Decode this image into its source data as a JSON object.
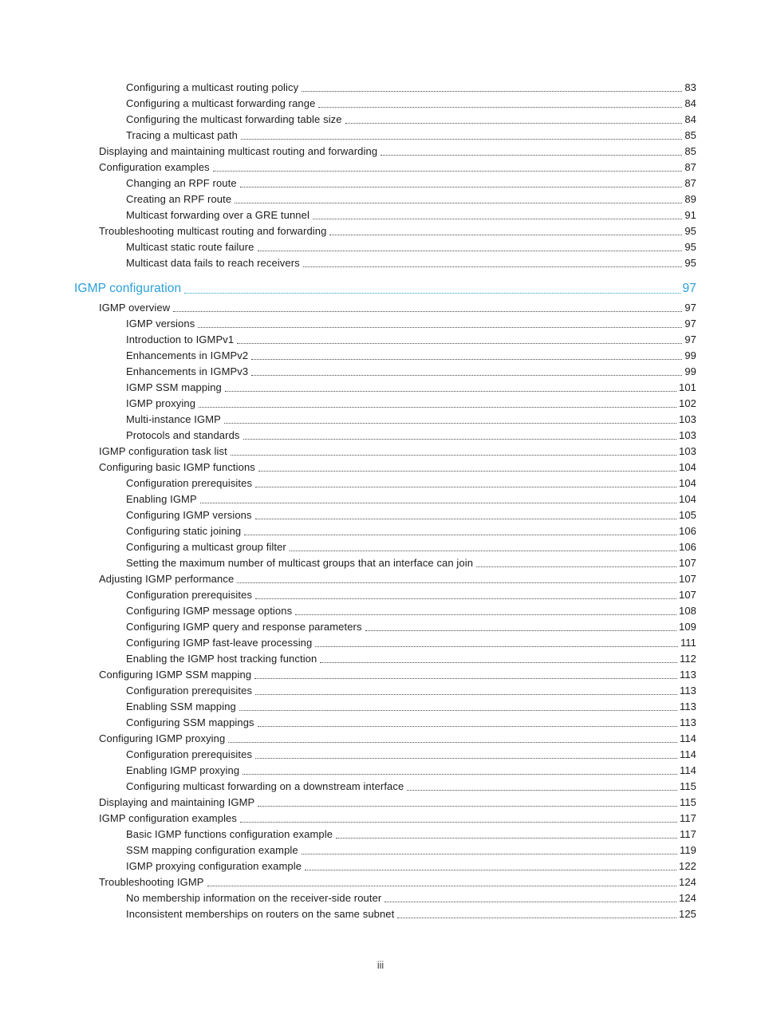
{
  "page": {
    "footer_page_number": "iii",
    "accent_color": "#2aa0da",
    "text_color": "#1c1c1c"
  },
  "toc": {
    "entries": [
      {
        "level": 3,
        "label": "Configuring a multicast routing policy",
        "page": "83"
      },
      {
        "level": 3,
        "label": "Configuring a multicast forwarding range",
        "page": "84"
      },
      {
        "level": 3,
        "label": "Configuring the multicast forwarding table size",
        "page": "84"
      },
      {
        "level": 3,
        "label": "Tracing a multicast path",
        "page": "85"
      },
      {
        "level": 2,
        "label": "Displaying and maintaining multicast routing and forwarding",
        "page": "85"
      },
      {
        "level": 2,
        "label": "Configuration examples",
        "page": "87"
      },
      {
        "level": 3,
        "label": "Changing an RPF route",
        "page": "87"
      },
      {
        "level": 3,
        "label": "Creating an RPF route",
        "page": "89"
      },
      {
        "level": 3,
        "label": "Multicast forwarding over a GRE tunnel",
        "page": "91"
      },
      {
        "level": 2,
        "label": "Troubleshooting multicast routing and forwarding",
        "page": "95"
      },
      {
        "level": 3,
        "label": "Multicast static route failure",
        "page": "95"
      },
      {
        "level": 3,
        "label": "Multicast data fails to reach receivers",
        "page": "95"
      },
      {
        "level": 1,
        "label": "IGMP configuration",
        "page": "97"
      },
      {
        "level": 2,
        "label": "IGMP overview",
        "page": "97"
      },
      {
        "level": 3,
        "label": "IGMP versions",
        "page": "97"
      },
      {
        "level": 3,
        "label": "Introduction to IGMPv1",
        "page": "97"
      },
      {
        "level": 3,
        "label": "Enhancements in IGMPv2",
        "page": "99"
      },
      {
        "level": 3,
        "label": "Enhancements in IGMPv3",
        "page": "99"
      },
      {
        "level": 3,
        "label": "IGMP SSM mapping",
        "page": "101"
      },
      {
        "level": 3,
        "label": "IGMP proxying",
        "page": "102"
      },
      {
        "level": 3,
        "label": "Multi-instance IGMP",
        "page": "103"
      },
      {
        "level": 3,
        "label": "Protocols and standards",
        "page": "103"
      },
      {
        "level": 2,
        "label": "IGMP configuration task list",
        "page": "103"
      },
      {
        "level": 2,
        "label": "Configuring basic IGMP functions",
        "page": "104"
      },
      {
        "level": 3,
        "label": "Configuration prerequisites",
        "page": "104"
      },
      {
        "level": 3,
        "label": "Enabling IGMP",
        "page": "104"
      },
      {
        "level": 3,
        "label": "Configuring IGMP versions",
        "page": "105"
      },
      {
        "level": 3,
        "label": "Configuring static joining",
        "page": "106"
      },
      {
        "level": 3,
        "label": "Configuring a multicast group filter",
        "page": "106"
      },
      {
        "level": 3,
        "label": "Setting the maximum number of multicast groups that an interface can join",
        "page": "107"
      },
      {
        "level": 2,
        "label": "Adjusting IGMP performance",
        "page": "107"
      },
      {
        "level": 3,
        "label": "Configuration prerequisites",
        "page": "107"
      },
      {
        "level": 3,
        "label": "Configuring IGMP message options",
        "page": "108"
      },
      {
        "level": 3,
        "label": "Configuring IGMP query and response parameters",
        "page": "109"
      },
      {
        "level": 3,
        "label": "Configuring IGMP fast-leave processing",
        "page": "111"
      },
      {
        "level": 3,
        "label": "Enabling the IGMP host tracking function",
        "page": "112"
      },
      {
        "level": 2,
        "label": "Configuring IGMP SSM mapping",
        "page": "113"
      },
      {
        "level": 3,
        "label": "Configuration prerequisites",
        "page": "113"
      },
      {
        "level": 3,
        "label": "Enabling SSM mapping",
        "page": "113"
      },
      {
        "level": 3,
        "label": "Configuring SSM mappings",
        "page": "113"
      },
      {
        "level": 2,
        "label": "Configuring IGMP proxying",
        "page": "114"
      },
      {
        "level": 3,
        "label": "Configuration prerequisites",
        "page": "114"
      },
      {
        "level": 3,
        "label": "Enabling IGMP proxying",
        "page": "114"
      },
      {
        "level": 3,
        "label": "Configuring multicast forwarding on a downstream interface",
        "page": "115"
      },
      {
        "level": 2,
        "label": "Displaying and maintaining IGMP",
        "page": "115"
      },
      {
        "level": 2,
        "label": "IGMP configuration examples",
        "page": "117"
      },
      {
        "level": 3,
        "label": "Basic IGMP functions configuration example",
        "page": "117"
      },
      {
        "level": 3,
        "label": "SSM mapping configuration example",
        "page": "119"
      },
      {
        "level": 3,
        "label": "IGMP proxying configuration example",
        "page": "122"
      },
      {
        "level": 2,
        "label": "Troubleshooting IGMP",
        "page": "124"
      },
      {
        "level": 3,
        "label": "No membership information on the receiver-side router",
        "page": "124"
      },
      {
        "level": 3,
        "label": "Inconsistent memberships on routers on the same subnet",
        "page": "125"
      }
    ]
  }
}
